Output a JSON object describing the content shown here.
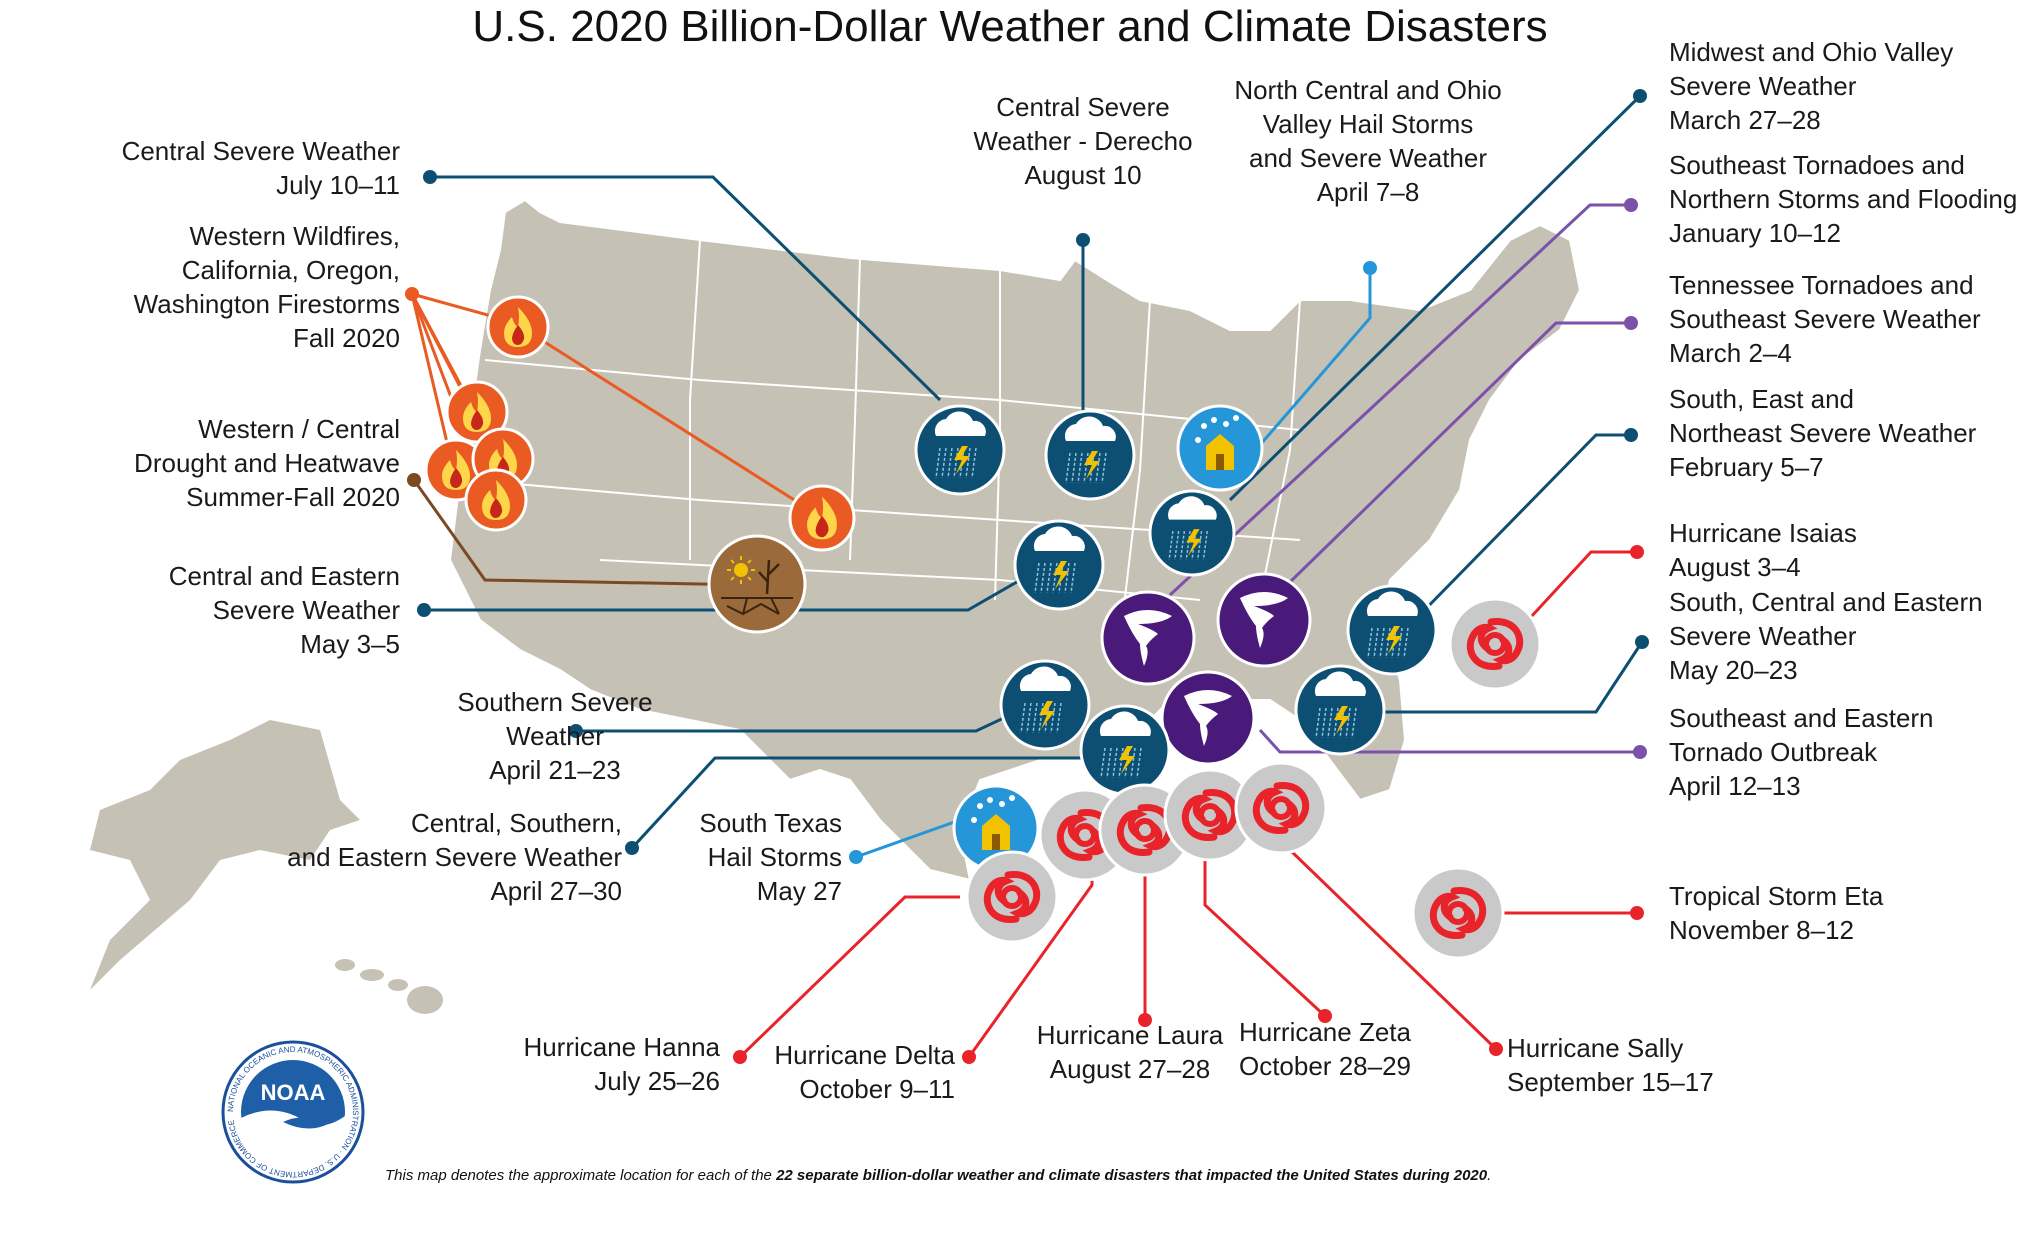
{
  "title": "U.S. 2020 Billion-Dollar Weather and Climate Disasters",
  "footnote": {
    "prefix": "This map denotes the approximate location for each of the ",
    "bold": "22 separate billion-dollar weather and climate disasters that impacted the United States during 2020",
    "suffix": "."
  },
  "logo": {
    "text": "NOAA",
    "ring_text": "NATIONAL OCEANIC AND ATMOSPHERIC ADMINISTRATION · U.S. DEPARTMENT OF COMMERCE"
  },
  "colors": {
    "severe": "#0d4f73",
    "tornado": "#7b52ab",
    "hurricane": "#e8232a",
    "hail": "#2596d8",
    "wildfire": "#ea5b23",
    "drought": "#7a4a22",
    "land": "#c5c1b5"
  },
  "disasters": [
    {
      "id": "central-severe-jul",
      "type": "severe",
      "lines": [
        "Central Severe Weather",
        "July 10–11"
      ]
    },
    {
      "id": "western-wildfires",
      "type": "wildfire",
      "lines": [
        "Western Wildfires,",
        "California, Oregon,",
        "Washington Firestorms",
        "Fall 2020"
      ]
    },
    {
      "id": "western-drought",
      "type": "drought",
      "lines": [
        "Western / Central",
        "Drought and Heatwave",
        "Summer-Fall 2020"
      ]
    },
    {
      "id": "central-eastern-may",
      "type": "severe",
      "lines": [
        "Central and Eastern",
        "Severe Weather",
        "May 3–5"
      ]
    },
    {
      "id": "southern-severe-apr",
      "type": "severe",
      "lines": [
        "Southern Severe",
        "Weather",
        "April 21–23"
      ]
    },
    {
      "id": "central-southern-eastern-apr",
      "type": "severe",
      "lines": [
        "Central, Southern,",
        "and Eastern Severe Weather",
        "April 27–30"
      ]
    },
    {
      "id": "south-texas-hail",
      "type": "hail",
      "lines": [
        "South Texas",
        "Hail Storms",
        "May 27"
      ]
    },
    {
      "id": "derecho",
      "type": "severe",
      "lines": [
        "Central Severe",
        "Weather - Derecho",
        "August 10"
      ]
    },
    {
      "id": "north-central-hail",
      "type": "hail",
      "lines": [
        "North Central and Ohio",
        "Valley Hail Storms",
        "and Severe Weather",
        "April 7–8"
      ]
    },
    {
      "id": "midwest-ohio",
      "type": "severe",
      "lines": [
        "Midwest and Ohio Valley",
        "Severe Weather",
        "March 27–28"
      ]
    },
    {
      "id": "southeast-tornadoes-jan",
      "type": "tornado",
      "lines": [
        "Southeast Tornadoes and",
        "Northern Storms and Flooding",
        "January 10–12"
      ]
    },
    {
      "id": "tennessee-tornadoes",
      "type": "tornado",
      "lines": [
        "Tennessee Tornadoes and",
        "Southeast Severe Weather",
        "March 2–4"
      ]
    },
    {
      "id": "south-east-northeast-feb",
      "type": "severe",
      "lines": [
        "South, East and",
        "Northeast Severe Weather",
        "February 5–7"
      ]
    },
    {
      "id": "isaias",
      "type": "hurricane",
      "lines": [
        "Hurricane Isaias",
        "August 3–4"
      ]
    },
    {
      "id": "south-central-eastern-may",
      "type": "severe",
      "lines": [
        "South, Central and Eastern",
        "Severe Weather",
        "May 20–23"
      ]
    },
    {
      "id": "southeast-eastern-tornado",
      "type": "tornado",
      "lines": [
        "Southeast and Eastern",
        "Tornado Outbreak",
        "April 12–13"
      ]
    },
    {
      "id": "eta",
      "type": "hurricane",
      "lines": [
        "Tropical Storm Eta",
        "November 8–12"
      ]
    },
    {
      "id": "hanna",
      "type": "hurricane",
      "lines": [
        "Hurricane Hanna",
        "July 25–26"
      ]
    },
    {
      "id": "delta",
      "type": "hurricane",
      "lines": [
        "Hurricane Delta",
        "October 9–11"
      ]
    },
    {
      "id": "laura",
      "type": "hurricane",
      "lines": [
        "Hurricane Laura",
        "August 27–28"
      ]
    },
    {
      "id": "zeta",
      "type": "hurricane",
      "lines": [
        "Hurricane Zeta",
        "October 28–29"
      ]
    },
    {
      "id": "sally",
      "type": "hurricane",
      "lines": [
        "Hurricane Sally",
        "September 15–17"
      ]
    }
  ]
}
